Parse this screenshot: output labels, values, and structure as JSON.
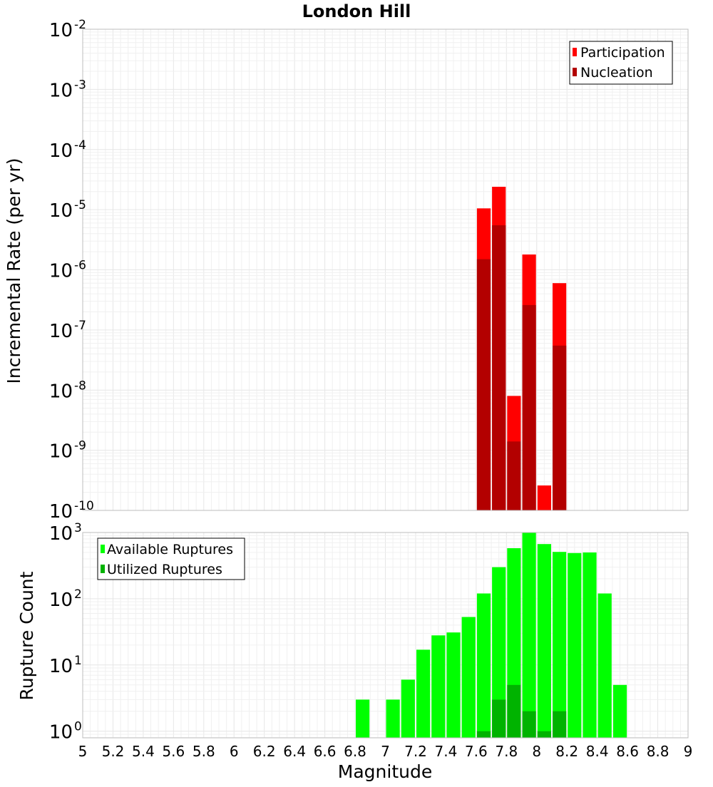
{
  "chart_data": [
    {
      "type": "bar",
      "title": "London Hill",
      "xlabel": "",
      "ylabel": "Incremental Rate (per yr)",
      "yscale": "log",
      "ylim_exp": [
        -10,
        -2
      ],
      "y_tick_base": "10",
      "y_tick_exponents": [
        "-10",
        "-9",
        "-8",
        "-7",
        "-6",
        "-5",
        "-4",
        "-3",
        "-2"
      ],
      "xlim": [
        5,
        9
      ],
      "bin_width": 0.1,
      "legend_position": "top-right",
      "series": [
        {
          "name": "Participation",
          "color": "#ff0000",
          "x": [
            7.65,
            7.75,
            7.85,
            7.95,
            8.05,
            8.15
          ],
          "values": [
            1.05e-05,
            2.4e-05,
            8e-09,
            1.8e-06,
            2.6e-10,
            6e-07
          ]
        },
        {
          "name": "Nucleation",
          "color": "#b30000",
          "x": [
            7.65,
            7.75,
            7.85,
            7.95,
            8.15
          ],
          "values": [
            1.5e-06,
            5.5e-06,
            1.4e-09,
            2.6e-07,
            5.5e-08
          ]
        }
      ]
    },
    {
      "type": "bar",
      "title": "",
      "xlabel": "Magnitude",
      "ylabel": "Rupture Count",
      "yscale": "log",
      "ylim_exp": [
        -0.1,
        3
      ],
      "y_tick_base": "10",
      "y_tick_exponents": [
        "0",
        "1",
        "2",
        "3"
      ],
      "xlim": [
        5,
        9
      ],
      "x_ticks": [
        "5",
        "5.2",
        "5.4",
        "5.6",
        "5.8",
        "6",
        "6.2",
        "6.4",
        "6.6",
        "6.8",
        "7",
        "7.2",
        "7.4",
        "7.6",
        "7.8",
        "8",
        "8.2",
        "8.4",
        "8.6",
        "8.8",
        "9"
      ],
      "bin_width": 0.1,
      "legend_position": "top-left",
      "series": [
        {
          "name": "Available Ruptures",
          "color": "#00ff00",
          "x": [
            6.85,
            7.05,
            7.15,
            7.25,
            7.35,
            7.45,
            7.55,
            7.65,
            7.75,
            7.85,
            7.95,
            8.05,
            8.15,
            8.25,
            8.35,
            8.45,
            8.55
          ],
          "values": [
            3,
            3,
            6,
            17,
            28,
            31,
            53,
            120,
            300,
            580,
            1000,
            670,
            510,
            490,
            500,
            120,
            5
          ]
        },
        {
          "name": "Utilized Ruptures",
          "color": "#00b300",
          "x": [
            7.65,
            7.75,
            7.85,
            7.95,
            8.05,
            8.15
          ],
          "values": [
            1,
            3,
            5,
            2,
            1,
            2
          ]
        }
      ]
    }
  ]
}
